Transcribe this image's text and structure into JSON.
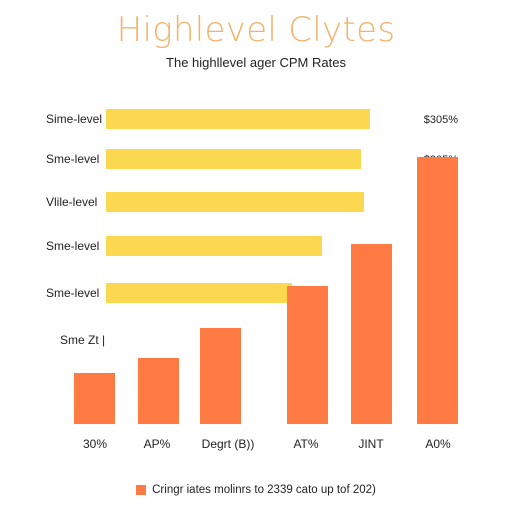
{
  "title": "Highlevel Clytes",
  "subtitle": "The highllevel ager CPM Rates",
  "legend": {
    "label": "Cringr iates molinrs to 2339 cato up tof 202)"
  },
  "chart_data": [
    {
      "type": "bar",
      "orientation": "horizontal",
      "categories": [
        "Sime-level",
        "Sme-level",
        "Vlile-level",
        "Sme-level",
        "Sme-level"
      ],
      "values": [
        0.88,
        0.85,
        0.86,
        0.72,
        0.62
      ],
      "value_annotations": [
        "$305%",
        "$305%",
        "",
        "",
        ""
      ],
      "xlim": [
        0,
        1
      ],
      "grid": false,
      "color": "#fbd84f"
    },
    {
      "type": "bar",
      "orientation": "vertical",
      "categories": [
        "30%",
        "AP%",
        "Degrt (B))",
        "AT%",
        "JINT",
        "A0%"
      ],
      "values": [
        0.17,
        0.22,
        0.32,
        0.46,
        0.6,
        0.89
      ],
      "ylabel": "Sme Zt |",
      "ylim": [
        0,
        1
      ],
      "grid": false,
      "color": "#ff7b43"
    }
  ]
}
